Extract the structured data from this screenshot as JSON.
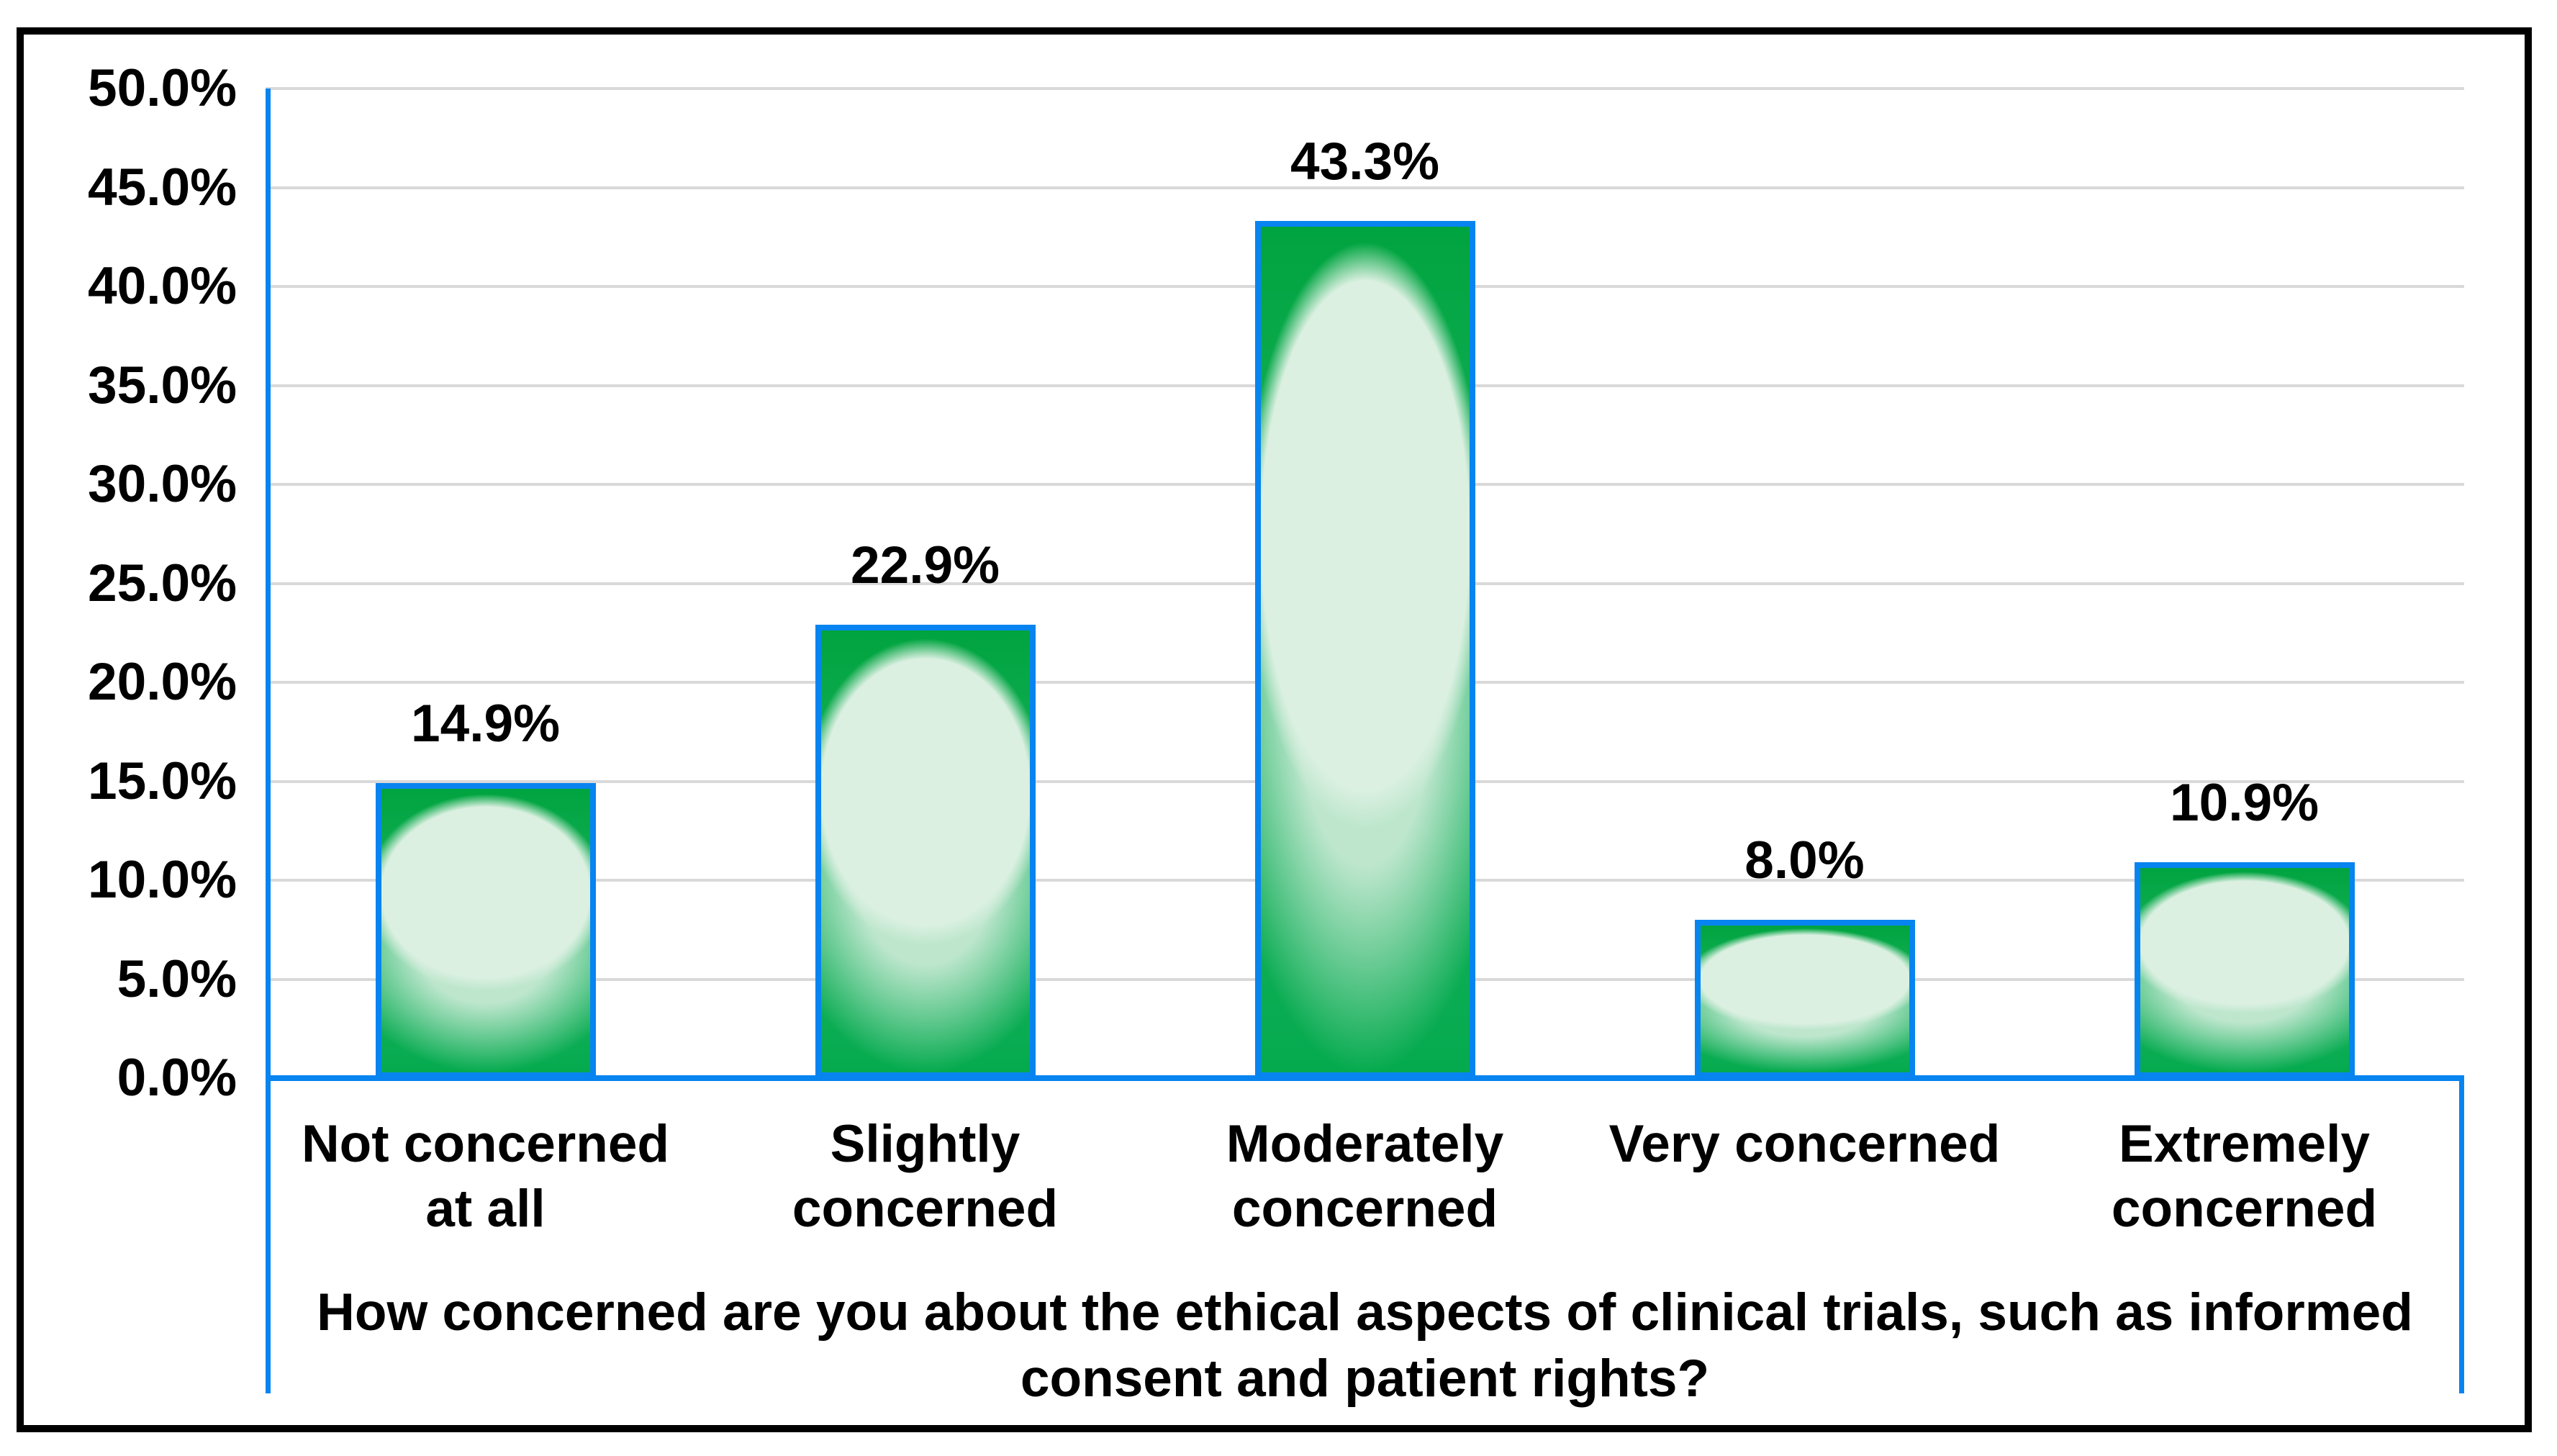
{
  "chart_data": {
    "type": "bar",
    "title": "",
    "xlabel": "How concerned are you about the ethical aspects of clinical trials, such as informed\nconsent and patient rights?",
    "ylabel": "",
    "categories": [
      "Not concerned\nat all",
      "Slightly\nconcerned",
      "Moderately\nconcerned",
      "Very concerned",
      "Extremely\nconcerned"
    ],
    "values": [
      14.9,
      22.9,
      43.3,
      8.0,
      10.9
    ],
    "value_labels": [
      "14.9%",
      "22.9%",
      "43.3%",
      "8.0%",
      "10.9%"
    ],
    "ylim": [
      0,
      50
    ],
    "ytick_step": 5,
    "yticks": [
      "0.0%",
      "5.0%",
      "10.0%",
      "15.0%",
      "20.0%",
      "25.0%",
      "30.0%",
      "35.0%",
      "40.0%",
      "45.0%",
      "50.0%"
    ],
    "grid": true,
    "legend": false,
    "gridlines_percent": [
      5,
      10,
      15,
      20,
      25,
      30,
      35,
      40,
      45,
      50
    ],
    "colors": {
      "accent-blue": "#0884F0",
      "grid-gray": "#D9D9D9",
      "green-dark": "#00A43F",
      "green-mid": "#1FB465",
      "green-light": "#DBF0E1",
      "text": "#000000",
      "frame": "#000000"
    }
  }
}
